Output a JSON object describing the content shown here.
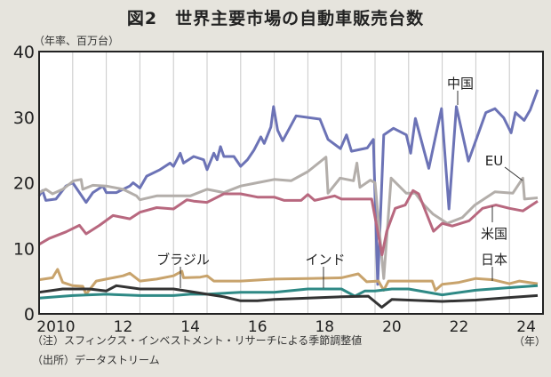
{
  "title": "図2　世界主要市場の自動車販売台数",
  "notes": [
    "（注）スフィンクス・インベストメント・リサーチによる季節調整値",
    "（出所）データストリーム"
  ],
  "chart_data": {
    "type": "line",
    "title": "図2　世界主要市場の自動車販売台数",
    "ylabel": "（年率、百万台）",
    "xlabel": "（年）",
    "ylim": [
      0,
      40
    ],
    "xlim": [
      2010,
      2025
    ],
    "yticks": [
      "0",
      "10",
      "20",
      "30",
      "40"
    ],
    "xticks": [
      {
        "year": 2010,
        "label": "2010"
      },
      {
        "year": 2012,
        "label": "12"
      },
      {
        "year": 2014,
        "label": "14"
      },
      {
        "year": 2016,
        "label": "16"
      },
      {
        "year": 2018,
        "label": "18"
      },
      {
        "year": 2020,
        "label": "20"
      },
      {
        "year": 2022,
        "label": "22"
      },
      {
        "year": 2024,
        "label": "24"
      }
    ],
    "grid": "vertical yearly",
    "series": [
      {
        "name": "中国",
        "color": "#6c73b6",
        "points": [
          [
            2010.0,
            18
          ],
          [
            2010.1,
            18.8
          ],
          [
            2010.2,
            17.3
          ],
          [
            2010.5,
            17.5
          ],
          [
            2010.8,
            19.5
          ],
          [
            2011.0,
            20
          ],
          [
            2011.2,
            18.5
          ],
          [
            2011.4,
            17
          ],
          [
            2011.6,
            18.5
          ],
          [
            2011.9,
            19.5
          ],
          [
            2012.0,
            18.5
          ],
          [
            2012.3,
            18.5
          ],
          [
            2012.7,
            19.5
          ],
          [
            2012.8,
            20
          ],
          [
            2013.0,
            19.2
          ],
          [
            2013.2,
            21
          ],
          [
            2013.6,
            22
          ],
          [
            2013.9,
            23
          ],
          [
            2014.0,
            22.5
          ],
          [
            2014.2,
            24.5
          ],
          [
            2014.3,
            23
          ],
          [
            2014.6,
            24
          ],
          [
            2014.9,
            23.5
          ],
          [
            2015.0,
            22
          ],
          [
            2015.2,
            24.5
          ],
          [
            2015.3,
            23.5
          ],
          [
            2015.4,
            25.5
          ],
          [
            2015.5,
            24
          ],
          [
            2015.8,
            24
          ],
          [
            2016.0,
            22.5
          ],
          [
            2016.2,
            23.5
          ],
          [
            2016.4,
            25
          ],
          [
            2016.6,
            27
          ],
          [
            2016.7,
            26
          ],
          [
            2016.9,
            28.5
          ],
          [
            2016.98,
            31.6
          ],
          [
            2017.1,
            28
          ],
          [
            2017.25,
            26.4
          ],
          [
            2017.65,
            30.2
          ],
          [
            2018.36,
            29.7
          ],
          [
            2018.6,
            26.6
          ],
          [
            2018.97,
            25.2
          ],
          [
            2019.15,
            27.3
          ],
          [
            2019.3,
            24.8
          ],
          [
            2019.77,
            25.3
          ],
          [
            2019.95,
            26.6
          ],
          [
            2020.08,
            4.5
          ],
          [
            2020.26,
            27.3
          ],
          [
            2020.55,
            28.3
          ],
          [
            2020.93,
            27.3
          ],
          [
            2021.06,
            24.5
          ],
          [
            2021.2,
            29.8
          ],
          [
            2021.6,
            22.2
          ],
          [
            2021.98,
            31.3
          ],
          [
            2022.2,
            16
          ],
          [
            2022.42,
            31.6
          ],
          [
            2022.78,
            23.3
          ],
          [
            2023.3,
            30.7
          ],
          [
            2023.57,
            31.3
          ],
          [
            2023.83,
            29.9
          ],
          [
            2024.05,
            27.6
          ],
          [
            2024.18,
            30.7
          ],
          [
            2024.44,
            29.5
          ],
          [
            2024.62,
            31.1
          ],
          [
            2024.84,
            34.2
          ]
        ]
      },
      {
        "name": "EU",
        "color": "#b3aeaa",
        "points": [
          [
            2010.0,
            18.5
          ],
          [
            2010.2,
            19
          ],
          [
            2010.4,
            18.3
          ],
          [
            2010.7,
            19
          ],
          [
            2011.03,
            20.3
          ],
          [
            2011.25,
            20.5
          ],
          [
            2011.3,
            19
          ],
          [
            2011.6,
            19.6
          ],
          [
            2012.0,
            19.5
          ],
          [
            2012.5,
            19
          ],
          [
            2012.9,
            18
          ],
          [
            2013.0,
            17.4
          ],
          [
            2013.5,
            18
          ],
          [
            2014.0,
            18
          ],
          [
            2014.5,
            18
          ],
          [
            2015.0,
            19
          ],
          [
            2015.5,
            18.5
          ],
          [
            2016.0,
            19.5
          ],
          [
            2016.5,
            20
          ],
          [
            2017.0,
            20.5
          ],
          [
            2017.5,
            20.3
          ],
          [
            2018.0,
            21.7
          ],
          [
            2018.54,
            23.9
          ],
          [
            2018.6,
            18.4
          ],
          [
            2018.96,
            20.7
          ],
          [
            2019.36,
            20.3
          ],
          [
            2019.46,
            23
          ],
          [
            2019.55,
            19.3
          ],
          [
            2019.86,
            20.4
          ],
          [
            2020.0,
            20
          ],
          [
            2020.26,
            5.4
          ],
          [
            2020.48,
            20.7
          ],
          [
            2020.93,
            18.4
          ],
          [
            2021.2,
            18.4
          ],
          [
            2021.46,
            16.6
          ],
          [
            2021.73,
            15.2
          ],
          [
            2022.15,
            13.8
          ],
          [
            2022.6,
            14.7
          ],
          [
            2022.97,
            16.6
          ],
          [
            2023.57,
            18.6
          ],
          [
            2024.1,
            18.4
          ],
          [
            2024.4,
            20.7
          ],
          [
            2024.45,
            17.5
          ],
          [
            2024.84,
            17.7
          ]
        ]
      },
      {
        "name": "米国",
        "color": "#b8687f",
        "points": [
          [
            2010.0,
            10.6
          ],
          [
            2010.3,
            11.5
          ],
          [
            2010.8,
            12.5
          ],
          [
            2011.2,
            13.5
          ],
          [
            2011.4,
            12.2
          ],
          [
            2011.8,
            13.5
          ],
          [
            2012.2,
            15
          ],
          [
            2012.7,
            14.5
          ],
          [
            2013.0,
            15.5
          ],
          [
            2013.5,
            16.2
          ],
          [
            2014.0,
            16
          ],
          [
            2014.4,
            17.4
          ],
          [
            2014.6,
            17.2
          ],
          [
            2015.0,
            17
          ],
          [
            2015.5,
            18.3
          ],
          [
            2016.0,
            18.3
          ],
          [
            2016.5,
            17.8
          ],
          [
            2017.0,
            17.8
          ],
          [
            2017.3,
            17.3
          ],
          [
            2017.8,
            17.3
          ],
          [
            2018.0,
            18.2
          ],
          [
            2018.2,
            17.3
          ],
          [
            2018.8,
            18
          ],
          [
            2019.0,
            17.5
          ],
          [
            2019.9,
            17.5
          ],
          [
            2020.21,
            9
          ],
          [
            2020.35,
            12.6
          ],
          [
            2020.6,
            16.1
          ],
          [
            2020.9,
            16.6
          ],
          [
            2021.13,
            18.8
          ],
          [
            2021.3,
            18.3
          ],
          [
            2021.74,
            12.6
          ],
          [
            2022.0,
            13.8
          ],
          [
            2022.3,
            13.4
          ],
          [
            2022.8,
            14.2
          ],
          [
            2023.2,
            16.1
          ],
          [
            2023.6,
            16.6
          ],
          [
            2024.0,
            16.1
          ],
          [
            2024.4,
            15.7
          ],
          [
            2024.84,
            17.2
          ]
        ]
      },
      {
        "name": "日本",
        "color": "#c8a36c",
        "points": [
          [
            2010.0,
            5.2
          ],
          [
            2010.4,
            5.5
          ],
          [
            2010.55,
            6.8
          ],
          [
            2010.7,
            4.8
          ],
          [
            2011.0,
            4.3
          ],
          [
            2011.3,
            4.2
          ],
          [
            2011.4,
            3
          ],
          [
            2011.7,
            5
          ],
          [
            2012.0,
            5.3
          ],
          [
            2012.5,
            5.8
          ],
          [
            2012.7,
            6.2
          ],
          [
            2013.0,
            5
          ],
          [
            2013.5,
            5.3
          ],
          [
            2014.0,
            5.8
          ],
          [
            2014.25,
            6.5
          ],
          [
            2014.3,
            5.5
          ],
          [
            2014.8,
            5.6
          ],
          [
            2015.0,
            5.8
          ],
          [
            2015.2,
            5
          ],
          [
            2016.0,
            5
          ],
          [
            2017.0,
            5.3
          ],
          [
            2018.0,
            5.4
          ],
          [
            2019.0,
            5.5
          ],
          [
            2019.5,
            6.1
          ],
          [
            2019.75,
            4.9
          ],
          [
            2020.1,
            5
          ],
          [
            2020.26,
            3.6
          ],
          [
            2020.4,
            5
          ],
          [
            2021.0,
            5
          ],
          [
            2021.7,
            5
          ],
          [
            2021.8,
            3.6
          ],
          [
            2022.0,
            4.5
          ],
          [
            2022.5,
            4.8
          ],
          [
            2023.0,
            5.4
          ],
          [
            2023.5,
            5.2
          ],
          [
            2024.0,
            4.6
          ],
          [
            2024.3,
            5
          ],
          [
            2024.84,
            4.6
          ]
        ]
      },
      {
        "name": "インド",
        "color": "#2e8985",
        "points": [
          [
            2010.0,
            2.4
          ],
          [
            2011.0,
            2.8
          ],
          [
            2012.0,
            3.0
          ],
          [
            2013.0,
            2.8
          ],
          [
            2014.0,
            2.8
          ],
          [
            2014.5,
            3
          ],
          [
            2015.0,
            3
          ],
          [
            2016.0,
            3.3
          ],
          [
            2017.0,
            3.3
          ],
          [
            2018.0,
            3.8
          ],
          [
            2019.0,
            3.8
          ],
          [
            2019.4,
            2.7
          ],
          [
            2019.7,
            3.5
          ],
          [
            2020.0,
            3.5
          ],
          [
            2020.5,
            3.8
          ],
          [
            2021.0,
            3.8
          ],
          [
            2022.0,
            2.9
          ],
          [
            2023.0,
            3.6
          ],
          [
            2024.0,
            4
          ],
          [
            2024.84,
            4.3
          ]
        ]
      },
      {
        "name": "ブラジル",
        "color": "#333333",
        "points": [
          [
            2010.0,
            3.3
          ],
          [
            2010.7,
            3.8
          ],
          [
            2011.5,
            3.8
          ],
          [
            2012.0,
            3.5
          ],
          [
            2012.3,
            4.3
          ],
          [
            2013.0,
            3.8
          ],
          [
            2014.0,
            3.8
          ],
          [
            2014.5,
            3.4
          ],
          [
            2015.0,
            3.0
          ],
          [
            2015.5,
            2.6
          ],
          [
            2016.0,
            2.0
          ],
          [
            2016.5,
            2.0
          ],
          [
            2017.0,
            2.2
          ],
          [
            2018.0,
            2.4
          ],
          [
            2019.0,
            2.6
          ],
          [
            2019.8,
            2.7
          ],
          [
            2020.2,
            1.0
          ],
          [
            2020.5,
            2.2
          ],
          [
            2021.0,
            2.1
          ],
          [
            2022.0,
            1.9
          ],
          [
            2023.0,
            2.1
          ],
          [
            2024.0,
            2.5
          ],
          [
            2024.84,
            2.8
          ]
        ]
      }
    ]
  }
}
